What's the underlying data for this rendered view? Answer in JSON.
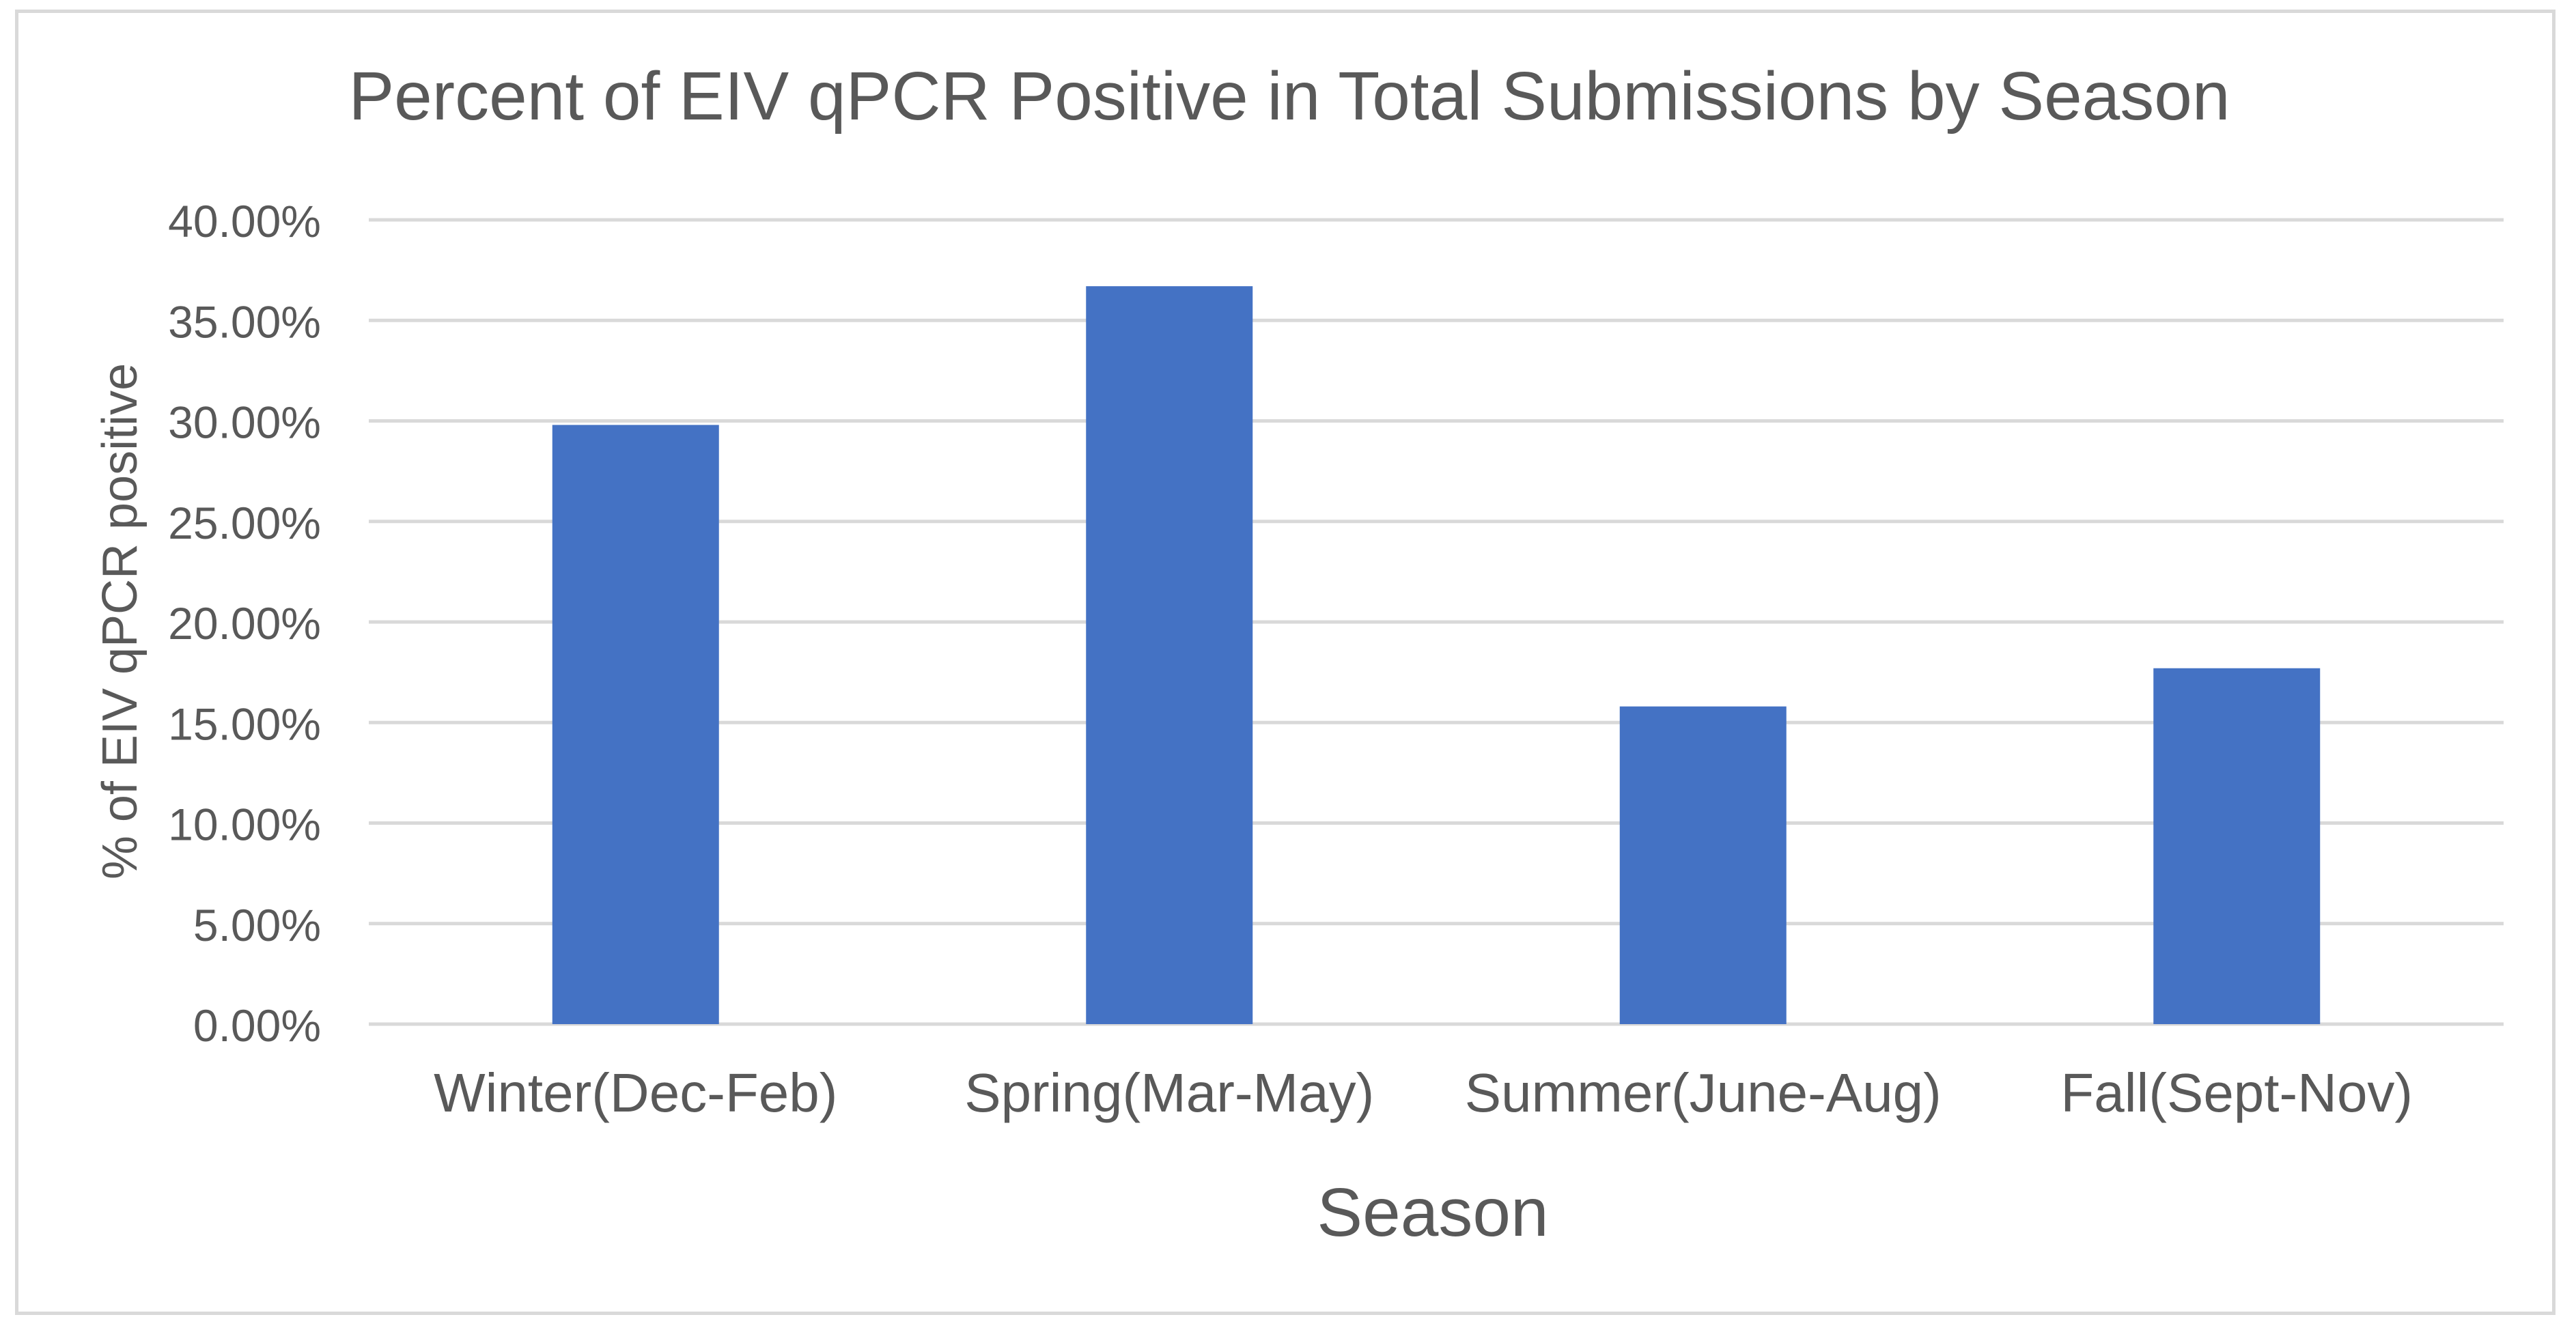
{
  "chart_data": {
    "type": "bar",
    "title": "Percent  of EIV qPCR Positive in Total Submissions by Season",
    "xlabel": "Season",
    "ylabel": "% of EIV qPCR positive",
    "categories": [
      "Winter(Dec-Feb)",
      "Spring(Mar-May)",
      "Summer(June-Aug)",
      "Fall(Sept-Nov)"
    ],
    "series": [
      {
        "name": "% of EIV qPCR positive",
        "values": [
          29.8,
          36.7,
          15.8,
          17.7
        ]
      }
    ],
    "ylim": [
      0,
      40
    ],
    "ytick_values": [
      0,
      5,
      10,
      15,
      20,
      25,
      30,
      35,
      40
    ],
    "ytick_labels": [
      "0.00%",
      "5.00%",
      "10.00%",
      "15.00%",
      "20.00%",
      "25.00%",
      "30.00%",
      "35.00%",
      "40.00%"
    ],
    "grid": true,
    "legend": "none",
    "colors": {
      "bar": "#4472C4",
      "grid": "#d9d9d9",
      "text": "#595959",
      "border": "#d9d9d9"
    }
  }
}
